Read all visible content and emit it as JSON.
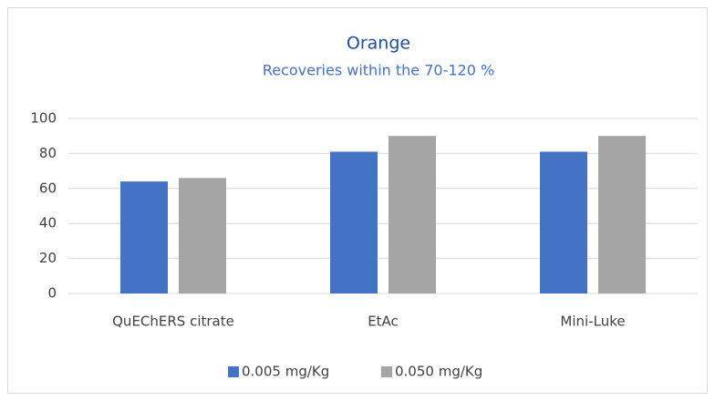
{
  "chart_data": {
    "type": "bar",
    "title": "Orange",
    "subtitle": "Recoveries within the 70-120 %",
    "categories": [
      "QuEChERS citrate",
      "EtAc",
      "Mini-Luke"
    ],
    "series": [
      {
        "name": "0.005 mg/Kg",
        "color": "#4472c4",
        "values": [
          64,
          81,
          81
        ]
      },
      {
        "name": "0.050 mg/Kg",
        "color": "#a5a5a5",
        "values": [
          66,
          90,
          90
        ]
      }
    ],
    "ylim": [
      0,
      100
    ],
    "yticks": [
      0,
      20,
      40,
      60,
      80,
      100
    ],
    "grid": true,
    "legend": "bottom"
  }
}
